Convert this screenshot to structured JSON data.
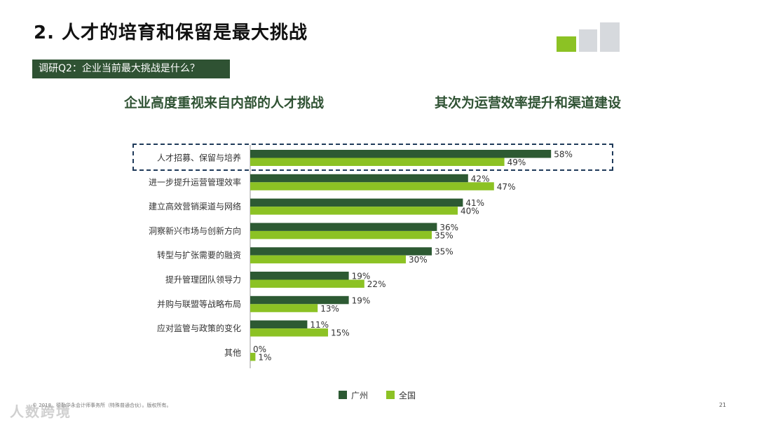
{
  "header": {
    "title": "2. 人才的培育和保留是最大挑战",
    "question": "调研Q2：企业当前最大挑战是什么？",
    "subhead_left": "企业高度重视来自内部的人才挑战",
    "subhead_right": "其次为运营效率提升和渠道建设"
  },
  "colors": {
    "dark_green": "#2d5a33",
    "light_green": "#8cc224",
    "gray_block": "#d6d9dd"
  },
  "chart_data": {
    "type": "bar",
    "orientation": "horizontal",
    "categories": [
      "人才招募、保留与培养",
      "进一步提升运营管理效率",
      "建立高效营销渠道与网络",
      "洞察新兴市场与创新方向",
      "转型与扩张需要的融资",
      "提升管理团队领导力",
      "并购与联盟等战略布局",
      "应对监管与政策的变化",
      "其他"
    ],
    "series": [
      {
        "name": "广州",
        "values": [
          58,
          42,
          41,
          36,
          35,
          19,
          19,
          11,
          0
        ],
        "labels": [
          "58%",
          "42%",
          "41%",
          "36%",
          "35%",
          "19%",
          "19%",
          "11%",
          "0%"
        ],
        "color": "#2d5a33"
      },
      {
        "name": "全国",
        "values": [
          49,
          47,
          40,
          35,
          30,
          22,
          13,
          15,
          1
        ],
        "labels": [
          "49%",
          "47%",
          "40%",
          "35%",
          "30%",
          "22%",
          "13%",
          "15%",
          "1%"
        ],
        "color": "#8cc224"
      }
    ],
    "legend": "bottom-center",
    "highlighted_category": "人才招募、保留与培养"
  },
  "footer": {
    "footnote": "© 2018。德勤华永会计师事务所（特殊普通合伙）。版权所有。",
    "page_number": "21",
    "watermark": "人数跨境"
  }
}
